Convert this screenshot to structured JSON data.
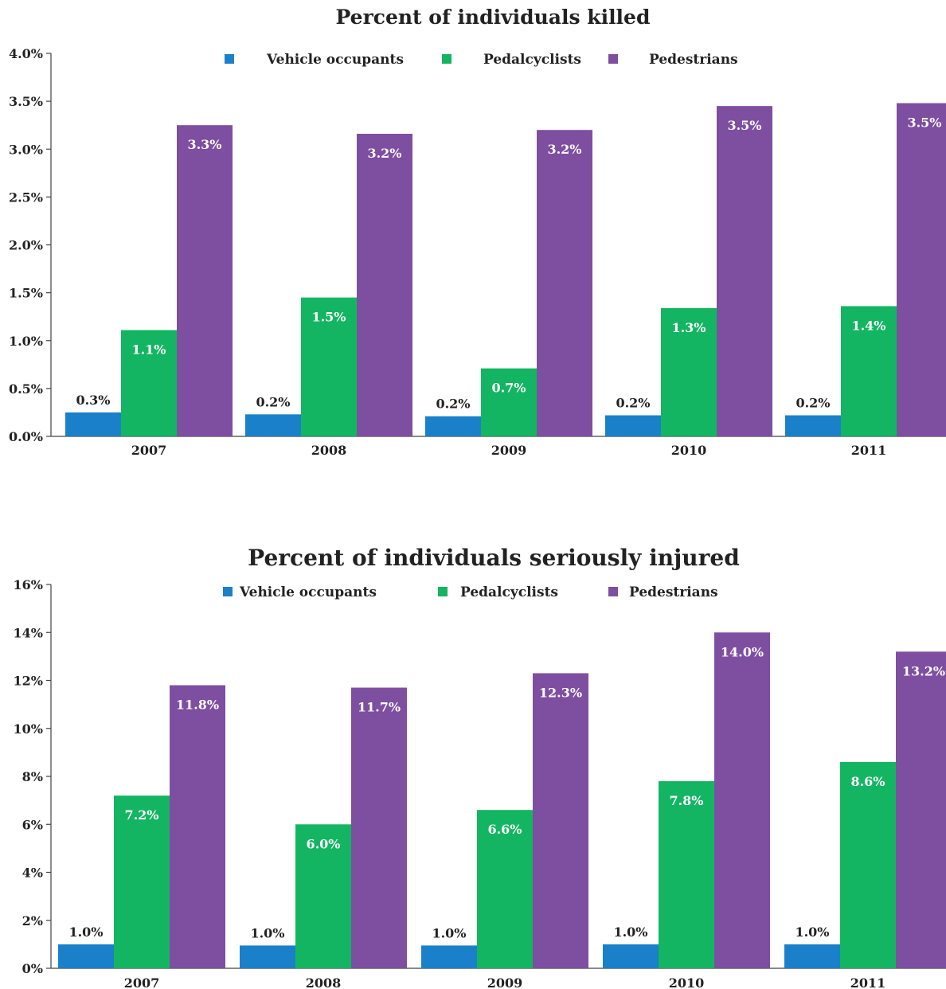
{
  "chart_data": [
    {
      "type": "bar",
      "title": "Percent of individuals killed",
      "categories": [
        "2007",
        "2008",
        "2009",
        "2010",
        "2011"
      ],
      "series": [
        {
          "name": "Vehicle occupants",
          "color": "#1a80c9",
          "values": [
            0.25,
            0.23,
            0.21,
            0.22,
            0.22
          ],
          "labels": [
            "0.3%",
            "0.2%",
            "0.2%",
            "0.2%",
            "0.2%"
          ]
        },
        {
          "name": "Pedalcyclists",
          "color": "#14b562",
          "values": [
            1.11,
            1.45,
            0.71,
            1.34,
            1.36
          ],
          "labels": [
            "1.1%",
            "1.5%",
            "0.7%",
            "1.3%",
            "1.4%"
          ]
        },
        {
          "name": "Pedestrians",
          "color": "#7e4ea0",
          "values": [
            3.25,
            3.16,
            3.2,
            3.45,
            3.48
          ],
          "labels": [
            "3.3%",
            "3.2%",
            "3.2%",
            "3.5%",
            "3.5%"
          ]
        }
      ],
      "ylim": [
        0,
        4.0
      ],
      "yticks": [
        0,
        0.5,
        1.0,
        1.5,
        2.0,
        2.5,
        3.0,
        3.5,
        4.0
      ],
      "ytick_labels": [
        "0.0%",
        "0.5%",
        "1.0%",
        "1.5%",
        "2.0%",
        "2.5%",
        "3.0%",
        "3.5%",
        "4.0%"
      ],
      "xlabel": "",
      "ylabel": "",
      "legend": "top-center",
      "grid": false
    },
    {
      "type": "bar",
      "title": "Percent of individuals seriously injured",
      "categories": [
        "2007",
        "2008",
        "2009",
        "2010",
        "2011"
      ],
      "series": [
        {
          "name": "Vehicle occupants",
          "color": "#1a80c9",
          "values": [
            1.0,
            0.95,
            0.95,
            1.0,
            1.0
          ],
          "labels": [
            "1.0%",
            "1.0%",
            "1.0%",
            "1.0%",
            "1.0%"
          ]
        },
        {
          "name": "Pedalcyclists",
          "color": "#14b562",
          "values": [
            7.2,
            6.0,
            6.6,
            7.8,
            8.6
          ],
          "labels": [
            "7.2%",
            "6.0%",
            "6.6%",
            "7.8%",
            "8.6%"
          ]
        },
        {
          "name": "Pedestrians",
          "color": "#7e4ea0",
          "values": [
            11.8,
            11.7,
            12.3,
            14.0,
            13.2
          ],
          "labels": [
            "11.8%",
            "11.7%",
            "12.3%",
            "14.0%",
            "13.2%"
          ]
        }
      ],
      "ylim": [
        0,
        16
      ],
      "yticks": [
        0,
        2,
        4,
        6,
        8,
        10,
        12,
        14,
        16
      ],
      "ytick_labels": [
        "0%",
        "2%",
        "4%",
        "6%",
        "8%",
        "10%",
        "12%",
        "14%",
        "16%"
      ],
      "xlabel": "",
      "ylabel": "",
      "legend": "top-center",
      "grid": false
    }
  ]
}
